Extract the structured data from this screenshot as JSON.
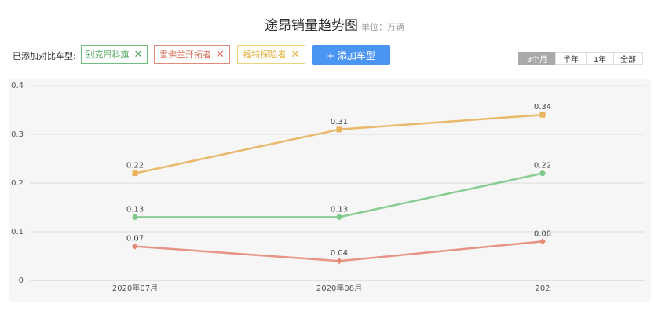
{
  "header": {
    "title": "途昂销量趋势图",
    "unit": "单位：万辆"
  },
  "compare": {
    "label": "已添加对比车型:",
    "chips": [
      {
        "label": "别克昂科旗",
        "close": "✕",
        "color": "#4ea75a"
      },
      {
        "label": "雪佛兰开拓者",
        "close": "✕",
        "color": "#d9705c"
      },
      {
        "label": "福特探险者",
        "close": "✕",
        "color": "#e0b23a"
      }
    ],
    "add_button": "+ 添加车型"
  },
  "range": {
    "options": [
      "3个月",
      "半年",
      "1年",
      "全部"
    ],
    "selected": "3个月"
  },
  "chart_data": {
    "type": "line",
    "x": [
      "2020年07月",
      "2020年08月",
      "202"
    ],
    "ylim": [
      0,
      0.4
    ],
    "yticks": [
      "0",
      "0.1",
      "0.2",
      "0.3",
      "0.4"
    ],
    "grid": true,
    "series": [
      {
        "name": "福特探险者",
        "color": "#e8b35a",
        "marker": "square",
        "values": [
          0.22,
          0.31,
          0.34
        ],
        "labels": [
          "0.22",
          "0.31",
          "0.34"
        ]
      },
      {
        "name": "别克昂科旗",
        "color": "#7ec98a",
        "marker": "circle",
        "values": [
          0.13,
          0.13,
          0.22
        ],
        "labels": [
          "0.13",
          "0.13",
          "0.22"
        ]
      },
      {
        "name": "雪佛兰开拓者",
        "color": "#e58a78",
        "marker": "diamond",
        "values": [
          0.07,
          0.04,
          0.08
        ],
        "labels": [
          "0.07",
          "0.04",
          "0.08"
        ]
      }
    ]
  }
}
